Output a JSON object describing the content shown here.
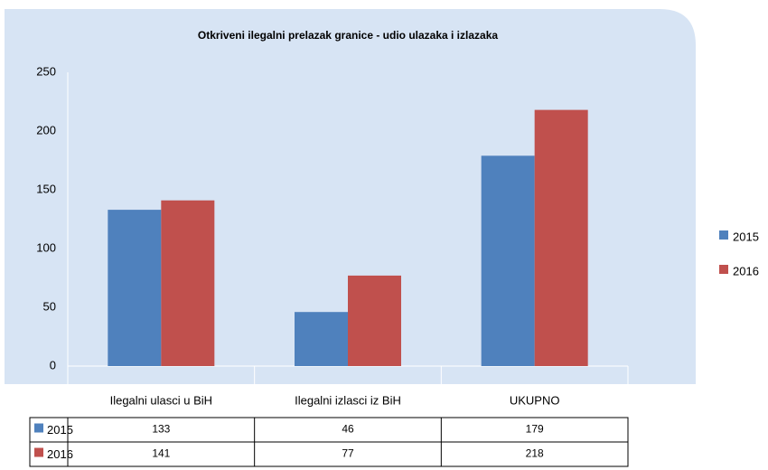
{
  "chart_data": {
    "type": "bar",
    "title": "Otkriveni ilegalni prelazak granice - udio ulazaka i izlazaka",
    "categories": [
      "Ilegalni ulasci u BiH",
      "Ilegalni izlasci iz BiH",
      "UKUPNO"
    ],
    "series": [
      {
        "name": "2015",
        "color": "#4f81bd",
        "values": [
          133,
          46,
          179
        ]
      },
      {
        "name": "2016",
        "color": "#c0504d",
        "values": [
          141,
          77,
          218
        ]
      }
    ],
    "ylim": [
      0,
      250
    ],
    "yticks": [
      0,
      50,
      100,
      150,
      200,
      250
    ],
    "grid": false,
    "legend": "right"
  }
}
